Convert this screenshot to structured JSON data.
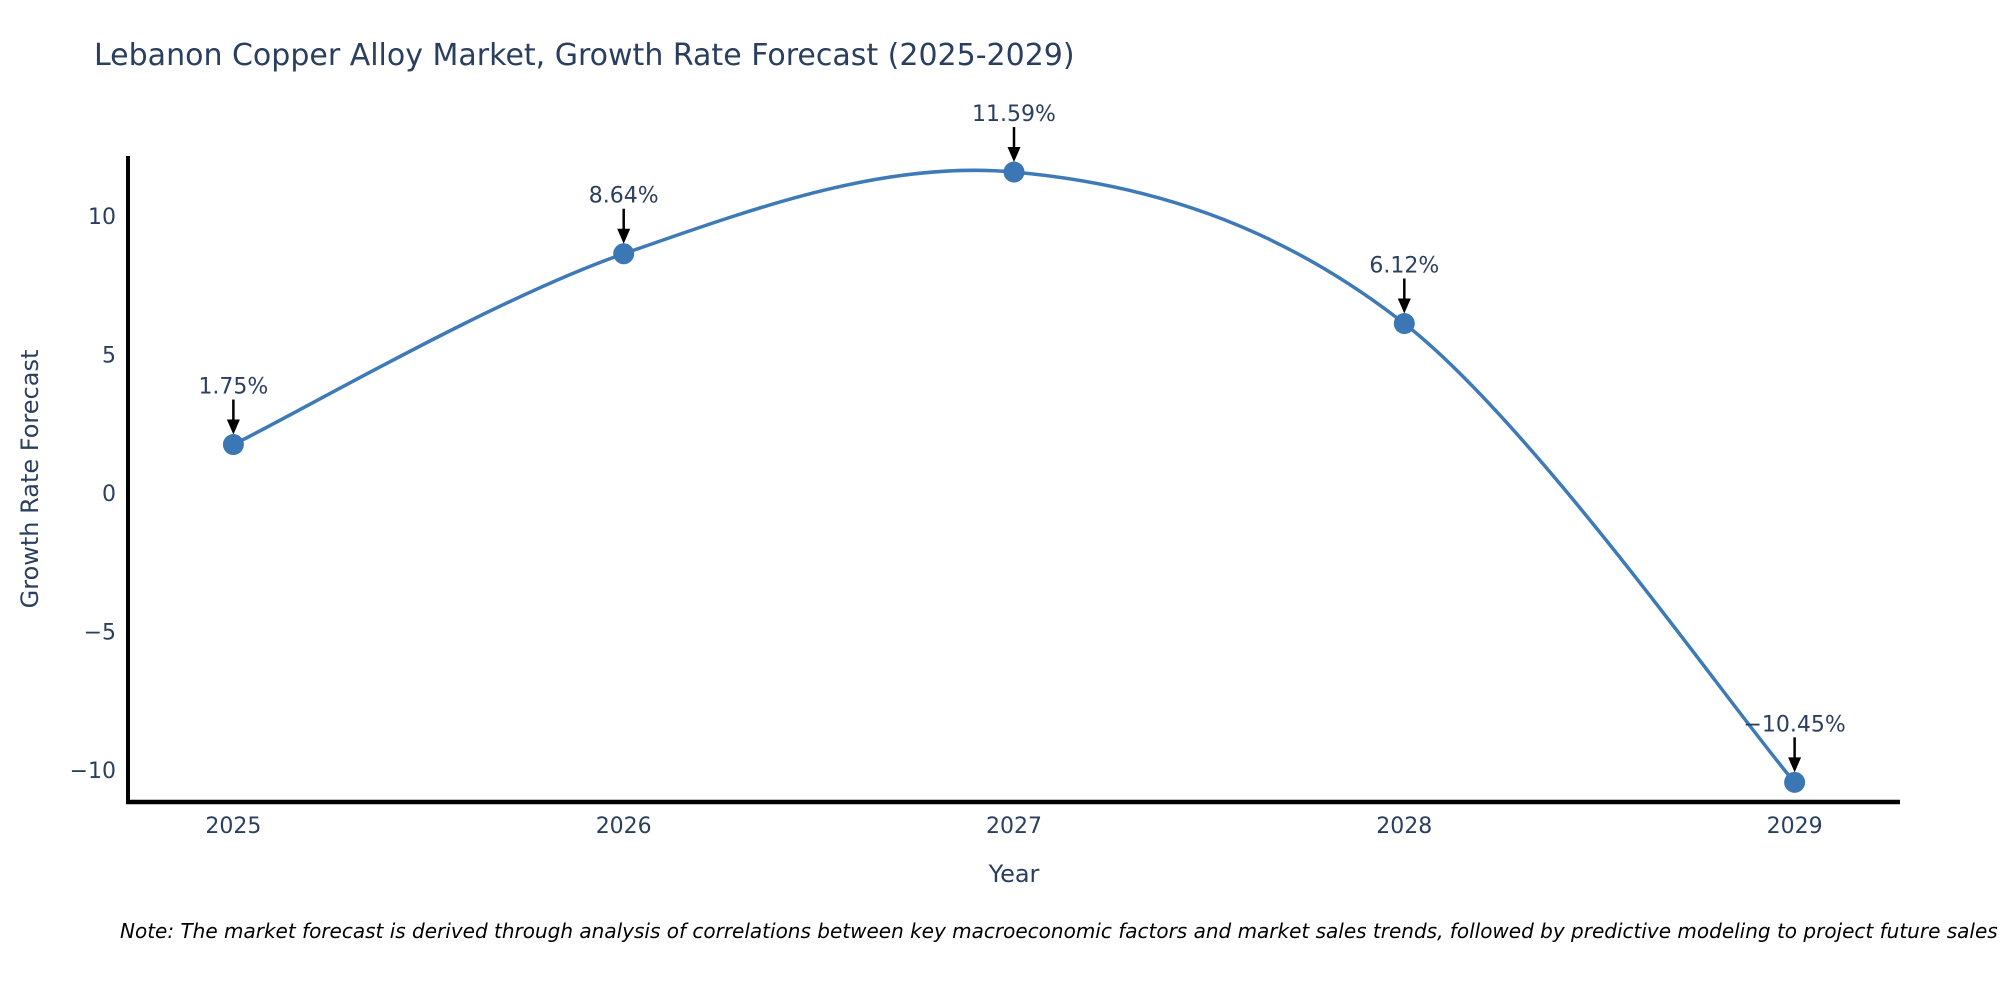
{
  "title": "Lebanon Copper Alloy Market, Growth Rate Forecast (2025-2029)",
  "note": "Note: The market forecast is derived through analysis of correlations between key macroeconomic factors and market sales trends, followed by predictive modeling to project future sales",
  "chart_data": {
    "type": "line",
    "title": "Lebanon Copper Alloy Market, Growth Rate Forecast (2025-2029)",
    "xlabel": "Year",
    "ylabel": "Growth Rate Forecast",
    "x": [
      2025,
      2026,
      2027,
      2028,
      2029
    ],
    "values": [
      1.75,
      8.64,
      11.59,
      6.12,
      -10.45
    ],
    "point_labels": [
      "1.75%",
      "8.64%",
      "11.59%",
      "6.12%",
      "−10.45%"
    ],
    "x_tick_labels": [
      "2025",
      "2026",
      "2027",
      "2028",
      "2029"
    ],
    "y_ticks": [
      {
        "value": 10,
        "label": "10"
      },
      {
        "value": 5,
        "label": "5"
      },
      {
        "value": 0,
        "label": "0"
      },
      {
        "value": -5,
        "label": "−5"
      },
      {
        "value": -10,
        "label": "−10"
      }
    ],
    "x_range": [
      2024.73,
      2029.27
    ],
    "y_range": [
      -11.16,
      12.17
    ],
    "line_shape": "spline",
    "grid": false,
    "legend": false,
    "colors": {
      "line": "#3d7ab7",
      "marker": "#3a77b4",
      "axis": "#000000",
      "tick_text": "#2a3f5f",
      "annotation_text": "#2a3f5f",
      "arrow": "#000000",
      "background": "#ffffff"
    }
  }
}
